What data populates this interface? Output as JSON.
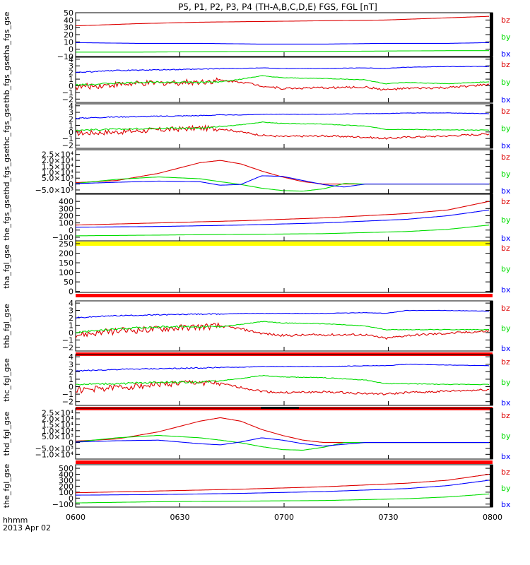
{
  "title": "P5, P1, P2, P3, P4 (TH-A,B,C,D,E) FGS, FGL [nT]",
  "footer": {
    "label": "hhmm",
    "date": "2013 Apr 02"
  },
  "x_ticks": [
    "0600",
    "0630",
    "0700",
    "0730",
    "0800"
  ],
  "colors": {
    "bx": "#0000ff",
    "by": "#00dd00",
    "bz": "#dd0000",
    "flag_yellow": "#ffff00",
    "flag_red": "#ff0000"
  },
  "chart_data": [
    {
      "type": "line",
      "name": "tha_fgs_gse",
      "ylabel": "tha_fgs_gse",
      "ylim": [
        -10,
        50
      ],
      "yticks": [
        "50",
        "40",
        "30",
        "20",
        "10",
        "0",
        "−10"
      ],
      "yticks_values": [
        50,
        40,
        30,
        20,
        10,
        0,
        -10
      ],
      "x": [
        0,
        0.15,
        0.3,
        0.45,
        0.6,
        0.75,
        0.9,
        1.0
      ],
      "series": [
        {
          "name": "bz",
          "values": [
            32,
            35,
            37,
            38,
            39,
            40,
            43,
            45
          ]
        },
        {
          "name": "by",
          "values": [
            -4,
            -4,
            -3.5,
            -3,
            -3,
            -2.5,
            -2,
            -2
          ]
        },
        {
          "name": "bx",
          "values": [
            9,
            8,
            8,
            7,
            7,
            8,
            8,
            9
          ]
        }
      ],
      "flag": null
    },
    {
      "type": "line",
      "name": "thb_fgs_gse",
      "ylabel": "thb_fgs_gse",
      "ylim": [
        -2.5,
        4.3
      ],
      "yticks": [
        "4",
        "3",
        "2",
        "1",
        "0",
        "−1",
        "−2"
      ],
      "yticks_values": [
        4,
        3,
        2,
        1,
        0,
        -1,
        -2
      ],
      "x": [
        0,
        0.1,
        0.2,
        0.3,
        0.35,
        0.4,
        0.45,
        0.5,
        0.6,
        0.7,
        0.75,
        0.8,
        0.9,
        1.0
      ],
      "series": [
        {
          "name": "bz",
          "values": [
            -0.2,
            0.2,
            0.4,
            0.6,
            0.8,
            0.6,
            0.0,
            -0.4,
            -0.3,
            -0.2,
            -0.6,
            -0.4,
            -0.3,
            0.2
          ]
        },
        {
          "name": "by",
          "values": [
            0.1,
            0.4,
            0.6,
            0.5,
            0.6,
            1.0,
            1.5,
            1.2,
            1.1,
            0.9,
            0.3,
            0.5,
            0.3,
            0.6
          ]
        },
        {
          "name": "bx",
          "values": [
            2.0,
            2.3,
            2.4,
            2.5,
            2.6,
            2.6,
            2.7,
            2.6,
            2.6,
            2.7,
            2.6,
            2.8,
            2.9,
            2.9
          ]
        }
      ],
      "noise": [
        0.9,
        0.25,
        0.15
      ],
      "flag": null
    },
    {
      "type": "line",
      "name": "thc_fgs_gse",
      "ylabel": "thc_fgs_gse",
      "ylim": [
        -2.5,
        4.3
      ],
      "yticks": [
        "4",
        "3",
        "2",
        "1",
        "0",
        "−1",
        "−2"
      ],
      "yticks_values": [
        4,
        3,
        2,
        1,
        0,
        -1,
        -2
      ],
      "x": [
        0,
        0.1,
        0.2,
        0.3,
        0.35,
        0.4,
        0.45,
        0.5,
        0.6,
        0.7,
        0.75,
        0.8,
        0.9,
        1.0
      ],
      "series": [
        {
          "name": "bz",
          "values": [
            -0.2,
            0.0,
            0.3,
            0.6,
            0.5,
            0.0,
            -0.5,
            -0.7,
            -0.6,
            -0.8,
            -1.0,
            -0.8,
            -0.6,
            -0.3
          ]
        },
        {
          "name": "by",
          "values": [
            0.3,
            0.4,
            0.6,
            0.6,
            0.8,
            1.1,
            1.5,
            1.3,
            1.2,
            0.9,
            0.4,
            0.4,
            0.3,
            0.3
          ]
        },
        {
          "name": "bx",
          "values": [
            2.1,
            2.3,
            2.4,
            2.5,
            2.6,
            2.6,
            2.7,
            2.7,
            2.7,
            2.8,
            2.8,
            2.9,
            2.9,
            2.8
          ]
        }
      ],
      "noise": [
        0.8,
        0.25,
        0.15
      ],
      "flag": null
    },
    {
      "type": "line",
      "name": "thd_fgs_gse",
      "ylabel": "thd_fgs_gse",
      "ylim": [
        -8000,
        29000
      ],
      "yticks": [
        "2.5×10⁴",
        "2.0×10⁴",
        "1.5×10⁴",
        "1.0×10⁴",
        "5.0×10³",
        "0",
        "−5.0×10³"
      ],
      "yticks_values": [
        25000,
        20000,
        15000,
        10000,
        5000,
        0,
        -5000
      ],
      "x": [
        0,
        0.1,
        0.2,
        0.3,
        0.35,
        0.4,
        0.45,
        0.5,
        0.55,
        0.6,
        0.65,
        0.7,
        0.75,
        0.8,
        0.9,
        1.0
      ],
      "series": [
        {
          "name": "bz",
          "values": [
            1200,
            3000,
            9000,
            18000,
            20000,
            17000,
            11000,
            6000,
            2000,
            0,
            0,
            0,
            0,
            0,
            0,
            0
          ]
        },
        {
          "name": "by",
          "values": [
            500,
            4000,
            6000,
            4500,
            2000,
            -400,
            -3500,
            -5500,
            -6000,
            -4000,
            500,
            0,
            0,
            0,
            0,
            0
          ]
        },
        {
          "name": "bx",
          "values": [
            400,
            1500,
            2500,
            2000,
            -1000,
            -300,
            7000,
            6500,
            3000,
            -500,
            -2500,
            0,
            0,
            0,
            0,
            0
          ]
        }
      ],
      "noise": [
        0,
        0,
        0
      ],
      "flag": null
    },
    {
      "type": "line",
      "name": "the_fgs_gse",
      "ylabel": "the_fgs_gse",
      "ylim": [
        -150,
        500
      ],
      "yticks": [
        "400",
        "300",
        "200",
        "100",
        "0",
        "−100"
      ],
      "yticks_values": [
        400,
        300,
        200,
        100,
        0,
        -100
      ],
      "x": [
        0,
        0.2,
        0.4,
        0.6,
        0.8,
        0.9,
        1.0
      ],
      "series": [
        {
          "name": "bz",
          "values": [
            70,
            100,
            130,
            170,
            230,
            280,
            400
          ]
        },
        {
          "name": "by",
          "values": [
            -80,
            -70,
            -60,
            -50,
            -20,
            10,
            70
          ]
        },
        {
          "name": "bx",
          "values": [
            40,
            50,
            70,
            100,
            150,
            200,
            280
          ]
        }
      ],
      "noise": [
        0,
        0,
        0
      ],
      "flag": "yellow"
    },
    {
      "type": "line",
      "name": "tha_fgl_gse",
      "ylabel": "tha_fgl_gse",
      "ylim": [
        -5,
        265
      ],
      "yticks": [
        "250",
        "200",
        "150",
        "100",
        "50",
        "0"
      ],
      "yticks_values": [
        250,
        200,
        150,
        100,
        50,
        0
      ],
      "x": [],
      "series": [],
      "noise": [],
      "flag": "red"
    },
    {
      "type": "line",
      "name": "thb_fgl_gse",
      "ylabel": "thb_fgl_gse",
      "ylim": [
        -2.5,
        4.3
      ],
      "yticks": [
        "4",
        "3",
        "2",
        "1",
        "0",
        "−1",
        "−2"
      ],
      "yticks_values": [
        4,
        3,
        2,
        1,
        0,
        -1,
        -2
      ],
      "x": [
        0,
        0.1,
        0.2,
        0.3,
        0.35,
        0.4,
        0.45,
        0.5,
        0.6,
        0.7,
        0.75,
        0.8,
        0.9,
        1.0
      ],
      "series": [
        {
          "name": "bz",
          "values": [
            -0.3,
            0.2,
            0.5,
            0.8,
            0.9,
            0.5,
            -0.1,
            -0.4,
            -0.3,
            -0.3,
            -0.8,
            -0.4,
            -0.1,
            0.2
          ]
        },
        {
          "name": "by",
          "values": [
            0.0,
            0.5,
            0.8,
            0.8,
            0.8,
            1.1,
            1.5,
            1.3,
            1.2,
            0.9,
            0.4,
            0.4,
            0.4,
            0.4
          ]
        },
        {
          "name": "bx",
          "values": [
            2.0,
            2.3,
            2.4,
            2.5,
            2.5,
            2.6,
            2.6,
            2.6,
            2.6,
            2.7,
            2.6,
            3.0,
            3.0,
            2.9
          ]
        }
      ],
      "noise": [
        0.9,
        0.25,
        0.15
      ],
      "flag": "red"
    },
    {
      "type": "line",
      "name": "thc_fgl_gse",
      "ylabel": "thc_fgl_gse",
      "ylim": [
        -2.5,
        4.3
      ],
      "yticks": [
        "4",
        "3",
        "2",
        "1",
        "0",
        "−1",
        "−2"
      ],
      "yticks_values": [
        4,
        3,
        2,
        1,
        0,
        -1,
        -2
      ],
      "x": [
        0,
        0.1,
        0.2,
        0.3,
        0.35,
        0.4,
        0.45,
        0.5,
        0.6,
        0.7,
        0.75,
        0.8,
        0.9,
        1.0
      ],
      "series": [
        {
          "name": "bz",
          "values": [
            -0.5,
            -0.1,
            0.3,
            0.6,
            0.4,
            -0.1,
            -0.6,
            -0.8,
            -0.7,
            -0.9,
            -1.0,
            -0.8,
            -0.6,
            -0.4
          ]
        },
        {
          "name": "by",
          "values": [
            0.3,
            0.4,
            0.6,
            0.6,
            0.8,
            1.1,
            1.5,
            1.3,
            1.2,
            0.9,
            0.4,
            0.4,
            0.3,
            0.3
          ]
        },
        {
          "name": "bx",
          "values": [
            2.1,
            2.3,
            2.4,
            2.5,
            2.6,
            2.6,
            2.7,
            2.7,
            2.7,
            2.8,
            2.8,
            3.0,
            2.9,
            2.8
          ]
        }
      ],
      "noise": [
        0.8,
        0.25,
        0.15
      ],
      "flag": "red"
    },
    {
      "type": "line",
      "name": "thd_fgl_gse",
      "ylabel": "thd_fgl_gse",
      "ylim": [
        -14000,
        29000
      ],
      "yticks": [
        "2.5×10⁴",
        "2.0×10⁴",
        "1.5×10⁴",
        "1.0×10⁴",
        "5.0×10³",
        "0",
        "−5.0×10³",
        "−1.0×10⁴"
      ],
      "yticks_values": [
        25000,
        20000,
        15000,
        10000,
        5000,
        0,
        -5000,
        -10000
      ],
      "x": [
        0,
        0.1,
        0.2,
        0.3,
        0.35,
        0.4,
        0.45,
        0.5,
        0.55,
        0.6,
        0.65,
        0.7,
        0.75,
        0.8,
        0.9,
        1.0
      ],
      "series": [
        {
          "name": "bz",
          "values": [
            1200,
            3000,
            9000,
            18000,
            21000,
            18000,
            11000,
            6000,
            2000,
            0,
            0,
            0,
            0,
            0,
            0,
            0
          ]
        },
        {
          "name": "by",
          "values": [
            500,
            4000,
            6000,
            4000,
            2000,
            -300,
            -3500,
            -6000,
            -6500,
            -4000,
            0,
            0,
            0,
            0,
            0,
            0
          ]
        },
        {
          "name": "bx",
          "values": [
            400,
            1500,
            2000,
            -1000,
            -2000,
            500,
            4000,
            2000,
            -1000,
            -3000,
            -1500,
            0,
            0,
            0,
            0,
            0
          ]
        }
      ],
      "noise": [
        0,
        0,
        0
      ],
      "flag": "red"
    },
    {
      "type": "line",
      "name": "the_fgl_gse",
      "ylabel": "the_fgl_gse",
      "ylim": [
        -150,
        560
      ],
      "yticks": [
        "500",
        "400",
        "300",
        "200",
        "100",
        "0",
        "−100"
      ],
      "yticks_values": [
        500,
        400,
        300,
        200,
        100,
        0,
        -100
      ],
      "x": [
        0,
        0.2,
        0.4,
        0.6,
        0.8,
        0.9,
        1.0
      ],
      "series": [
        {
          "name": "bz",
          "values": [
            90,
            120,
            150,
            190,
            250,
            300,
            400
          ]
        },
        {
          "name": "by",
          "values": [
            -80,
            -60,
            -50,
            -40,
            -10,
            20,
            70
          ]
        },
        {
          "name": "bx",
          "values": [
            50,
            60,
            80,
            110,
            160,
            210,
            300
          ]
        }
      ],
      "noise": [
        0,
        0,
        0
      ],
      "flag": null
    }
  ]
}
